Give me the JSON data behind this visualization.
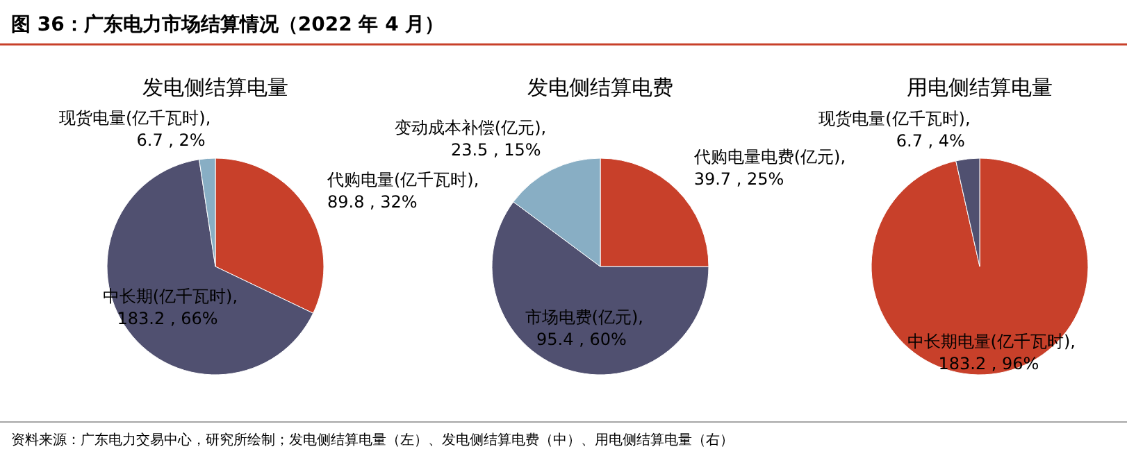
{
  "chart_data": [
    {
      "type": "pie",
      "title": "发电侧结算电量",
      "annotations": [
        "图 36：广东电力市场结算情况（2022 年 4 月）",
        "资料来源：广东电力交易中心，研究所绘制；发电侧结算电量（左）、发电侧结算电费（中）、用电侧结算电量（右）"
      ],
      "categories": [
        "代购电量(亿千瓦时)",
        "中长期(亿千瓦时)",
        "现货电量(亿千瓦时)"
      ],
      "values": [
        89.8,
        183.2,
        6.7
      ],
      "value_labels": [
        ",\n89.8 , 32%",
        ",\n183.2 , 66%",
        ",\n6.7 , 2%"
      ],
      "colors": [
        "#c8402a",
        "#505070",
        "#88aec4"
      ]
    },
    {
      "type": "pie",
      "title": "发电侧结算电费",
      "categories": [
        "代购电量电费(亿元)",
        "市场电费(亿元)",
        "变动成本补偿(亿元)"
      ],
      "values": [
        39.7,
        95.4,
        23.5
      ],
      "value_labels": [
        ",\n39.7 , 25%",
        ",\n95.4 , 60%",
        ",\n23.5 , 15%"
      ],
      "colors": [
        "#c8402a",
        "#505070",
        "#88aec4"
      ]
    },
    {
      "type": "pie",
      "title": "用电侧结算电量",
      "categories": [
        "中长期电量(亿千瓦时)",
        "现货电量(亿千瓦时)"
      ],
      "values": [
        183.2,
        6.7
      ],
      "value_labels": [
        ",\n183.2 , 96%",
        ",\n6.7 , 4%"
      ],
      "colors": [
        "#c8402a",
        "#505070"
      ]
    }
  ]
}
